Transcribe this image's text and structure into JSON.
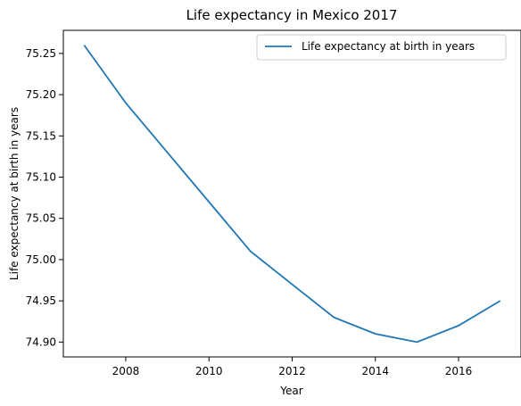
{
  "chart_data": {
    "type": "line",
    "title": "Life expectancy in Mexico 2017",
    "xlabel": "Year",
    "ylabel": "Life expectancy at birth in years",
    "series": [
      {
        "name": "Life expectancy at birth in years",
        "color": "#1f77b4",
        "x": [
          2007,
          2008,
          2009,
          2010,
          2011,
          2012,
          2013,
          2014,
          2015,
          2016,
          2017
        ],
        "y": [
          75.26,
          75.19,
          75.13,
          75.07,
          75.01,
          74.97,
          74.93,
          74.91,
          74.9,
          74.92,
          74.95
        ]
      }
    ],
    "xlim": [
      2006.5,
      2017.5
    ],
    "ylim": [
      74.882,
      75.278
    ],
    "xticks": [
      2008,
      2010,
      2012,
      2014,
      2016
    ],
    "xtick_labels": [
      "2008",
      "2010",
      "2012",
      "2014",
      "2016"
    ],
    "yticks": [
      74.9,
      74.95,
      75.0,
      75.05,
      75.1,
      75.15,
      75.2,
      75.25
    ],
    "ytick_labels": [
      "74.90",
      "74.95",
      "75.00",
      "75.05",
      "75.10",
      "75.15",
      "75.20",
      "75.25"
    ],
    "grid": false,
    "legend_position": "top-right"
  }
}
